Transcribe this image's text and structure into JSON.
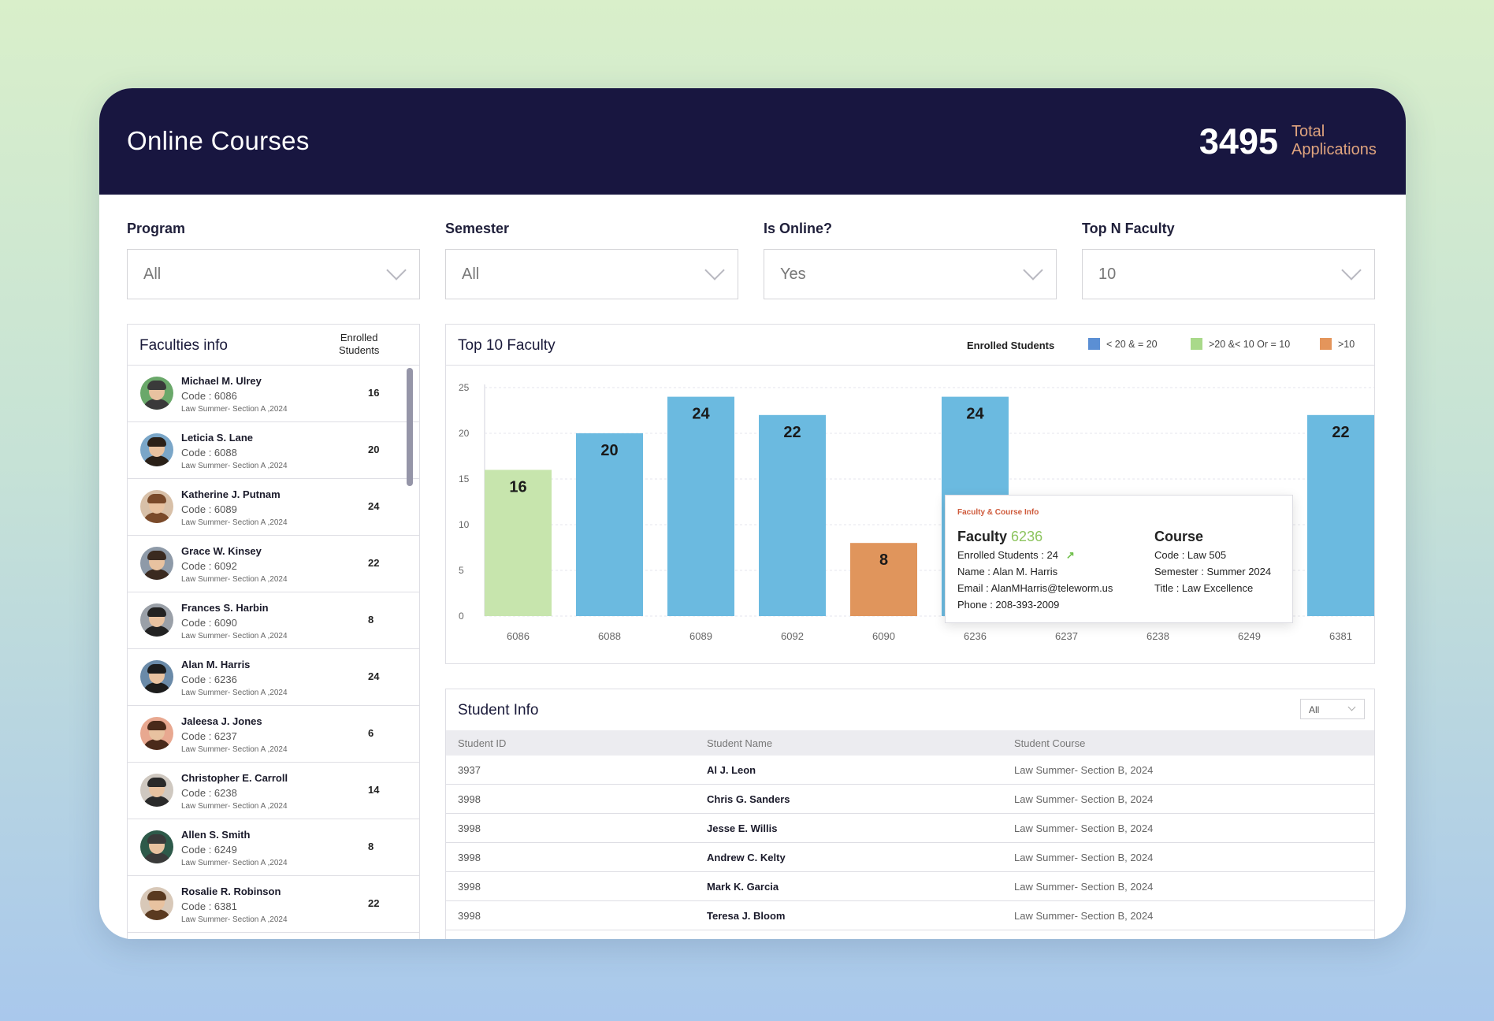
{
  "header": {
    "title": "Online Courses",
    "total_value": "3495",
    "total_label_line1": "Total",
    "total_label_line2": "Applications"
  },
  "filters": [
    {
      "label": "Program",
      "value": "All"
    },
    {
      "label": "Semester",
      "value": "All"
    },
    {
      "label": "Is Online?",
      "value": "Yes"
    },
    {
      "label": "Top N Faculty",
      "value": "10"
    }
  ],
  "faculties": {
    "title": "Faculties info",
    "col_header_line1": "Enrolled",
    "col_header_line2": "Students",
    "items": [
      {
        "name": "Michael M. Ulrey",
        "code": "Code : 6086",
        "section": "Law Summer- Section A ,2024",
        "enrolled": "16"
      },
      {
        "name": "Leticia S. Lane",
        "code": "Code : 6088",
        "section": "Law Summer- Section A ,2024",
        "enrolled": "20"
      },
      {
        "name": "Katherine J. Putnam",
        "code": "Code : 6089",
        "section": "Law Summer- Section A ,2024",
        "enrolled": "24"
      },
      {
        "name": "Grace W. Kinsey",
        "code": "Code : 6092",
        "section": "Law Summer- Section A ,2024",
        "enrolled": "22"
      },
      {
        "name": "Frances S. Harbin",
        "code": "Code : 6090",
        "section": "Law Summer- Section A ,2024",
        "enrolled": "8"
      },
      {
        "name": "Alan M. Harris",
        "code": "Code : 6236",
        "section": "Law Summer- Section A ,2024",
        "enrolled": "24"
      },
      {
        "name": "Jaleesa J. Jones",
        "code": "Code : 6237",
        "section": "Law Summer- Section A ,2024",
        "enrolled": "6"
      },
      {
        "name": "Christopher E. Carroll",
        "code": "Code : 6238",
        "section": "Law Summer- Section A ,2024",
        "enrolled": "14"
      },
      {
        "name": "Allen S. Smith",
        "code": "Code : 6249",
        "section": "Law Summer- Section A ,2024",
        "enrolled": "8"
      },
      {
        "name": "Rosalie R. Robinson",
        "code": "Code : 6381",
        "section": "Law Summer- Section A ,2024",
        "enrolled": "22"
      }
    ]
  },
  "chart": {
    "title": "Top 10 Faculty",
    "legend_title": "Enrolled Students",
    "legend": [
      {
        "label": "< 20 & = 20",
        "color": "#5b8fd4"
      },
      {
        "label": ">20 &< 10 Or = 10",
        "color": "#a9d98a"
      },
      {
        "label": ">10",
        "color": "#e4955b"
      }
    ]
  },
  "chart_data": {
    "type": "bar",
    "title": "Top 10 Faculty",
    "categories": [
      "6086",
      "6088",
      "6089",
      "6092",
      "6090",
      "6236",
      "6237",
      "6238",
      "6249",
      "6381"
    ],
    "values": [
      16,
      20,
      24,
      22,
      8,
      24,
      null,
      null,
      null,
      22
    ],
    "bar_colors": [
      "#c7e5ad",
      "#6bbae0",
      "#6bbae0",
      "#6bbae0",
      "#e0955c",
      "#6bbae0",
      null,
      null,
      null,
      "#6bbae0"
    ],
    "ylim": [
      0,
      25
    ],
    "yticks": [
      0,
      5,
      10,
      15,
      20,
      25
    ],
    "grid": true
  },
  "tooltip": {
    "heading": "Faculty & Course Info",
    "faculty_label": "Faculty",
    "faculty_code": "6236",
    "enrolled": "Enrolled Students : 24",
    "name": "Name : Alan M. Harris",
    "email": "Email : AlanMHarris@teleworm.us",
    "phone": "Phone : 208-393-2009",
    "course_label": "Course",
    "course_code": "Code : Law 505",
    "semester": "Semester : Summer 2024",
    "course_title": "Title : Law Excellence"
  },
  "students": {
    "title": "Student Info",
    "filter_value": "All",
    "columns": [
      "Student ID",
      "Student Name",
      "Student Course"
    ],
    "rows": [
      {
        "id": "3937",
        "name": "Al J. Leon",
        "course": "Law Summer- Section B, 2024"
      },
      {
        "id": "3998",
        "name": "Chris G. Sanders",
        "course": "Law Summer- Section B, 2024"
      },
      {
        "id": "3998",
        "name": "Jesse E. Willis",
        "course": "Law Summer- Section B, 2024"
      },
      {
        "id": "3998",
        "name": "Andrew C. Kelty",
        "course": "Law Summer- Section B, 2024"
      },
      {
        "id": "3998",
        "name": "Mark K. Garcia",
        "course": "Law Summer- Section B, 2024"
      },
      {
        "id": "3998",
        "name": "Teresa J. Bloom",
        "course": "Law Summer- Section B, 2024"
      }
    ]
  }
}
